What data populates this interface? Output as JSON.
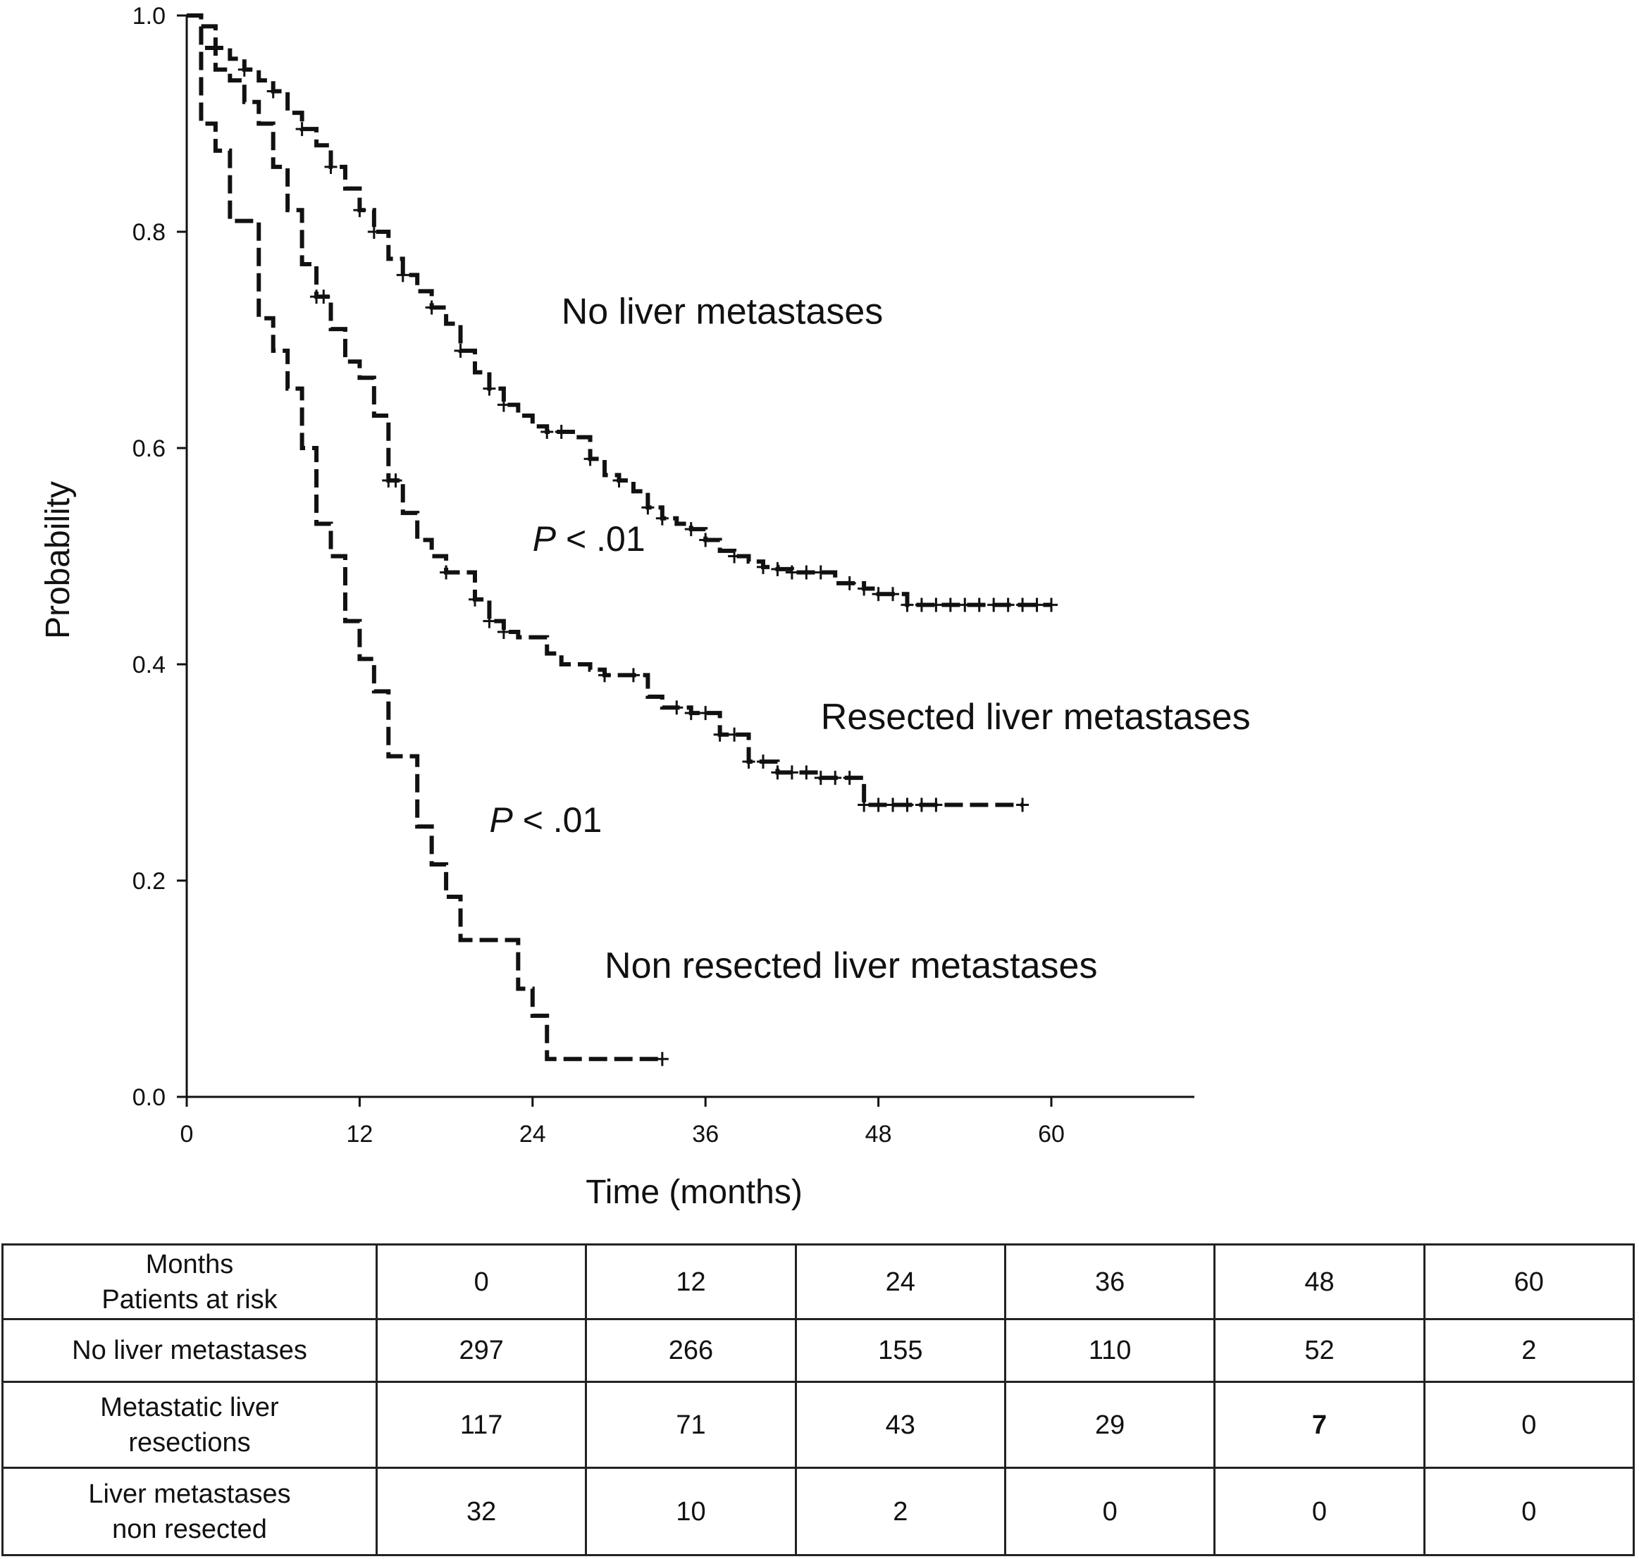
{
  "chart_data": {
    "type": "line",
    "subtype": "kaplan-meier",
    "xlabel": "Time (months)",
    "ylabel": "Probability",
    "xlim": [
      0,
      70
    ],
    "ylim": [
      0,
      1.0
    ],
    "xticks": [
      0,
      12,
      24,
      36,
      48,
      60
    ],
    "yticks": [
      0.0,
      0.2,
      0.4,
      0.6,
      0.8,
      1.0
    ],
    "ytick_labels": [
      "0.0",
      "0.2",
      "0.4",
      "0.6",
      "0.8",
      "1.0"
    ],
    "grid": false,
    "line_style": "dashed step with censor marks",
    "series": [
      {
        "name": "No liver metastases",
        "label_at": [
          26,
          0.715
        ],
        "steps": [
          [
            0,
            1.0
          ],
          [
            1,
            0.99
          ],
          [
            2,
            0.97
          ],
          [
            3,
            0.96
          ],
          [
            4,
            0.95
          ],
          [
            5,
            0.94
          ],
          [
            6,
            0.93
          ],
          [
            7,
            0.91
          ],
          [
            8,
            0.895
          ],
          [
            9,
            0.88
          ],
          [
            10,
            0.86
          ],
          [
            11,
            0.84
          ],
          [
            12,
            0.82
          ],
          [
            13,
            0.8
          ],
          [
            14,
            0.775
          ],
          [
            15,
            0.76
          ],
          [
            16,
            0.745
          ],
          [
            17,
            0.73
          ],
          [
            18,
            0.715
          ],
          [
            19,
            0.69
          ],
          [
            20,
            0.67
          ],
          [
            21,
            0.655
          ],
          [
            22,
            0.64
          ],
          [
            23,
            0.63
          ],
          [
            24,
            0.62
          ],
          [
            25,
            0.615
          ],
          [
            26,
            0.615
          ],
          [
            27,
            0.61
          ],
          [
            28,
            0.59
          ],
          [
            29,
            0.575
          ],
          [
            30,
            0.57
          ],
          [
            31,
            0.56
          ],
          [
            32,
            0.545
          ],
          [
            33,
            0.535
          ],
          [
            34,
            0.53
          ],
          [
            35,
            0.525
          ],
          [
            36,
            0.515
          ],
          [
            37,
            0.505
          ],
          [
            38,
            0.5
          ],
          [
            39,
            0.495
          ],
          [
            40,
            0.49
          ],
          [
            41,
            0.488
          ],
          [
            42,
            0.485
          ],
          [
            44,
            0.485
          ],
          [
            45,
            0.475
          ],
          [
            47,
            0.47
          ],
          [
            48,
            0.465
          ],
          [
            50,
            0.455
          ],
          [
            60,
            0.455
          ]
        ],
        "censor_times": [
          2,
          4,
          6,
          8,
          10,
          12,
          13,
          15,
          17,
          19,
          21,
          22,
          25,
          26,
          28,
          30,
          32,
          33,
          35,
          36,
          38,
          40,
          41,
          42,
          43,
          44,
          46,
          47,
          48,
          49,
          50,
          51,
          52,
          53,
          54,
          55,
          56,
          57,
          58,
          59,
          60
        ]
      },
      {
        "name": "Resected liver metastases",
        "label_at": [
          44,
          0.34
        ],
        "steps": [
          [
            0,
            1.0
          ],
          [
            1,
            0.97
          ],
          [
            2,
            0.95
          ],
          [
            3,
            0.94
          ],
          [
            4,
            0.92
          ],
          [
            5,
            0.9
          ],
          [
            6,
            0.86
          ],
          [
            7,
            0.82
          ],
          [
            8,
            0.77
          ],
          [
            9,
            0.74
          ],
          [
            10,
            0.71
          ],
          [
            11,
            0.68
          ],
          [
            12,
            0.665
          ],
          [
            13,
            0.63
          ],
          [
            14,
            0.57
          ],
          [
            15,
            0.54
          ],
          [
            16,
            0.515
          ],
          [
            17,
            0.5
          ],
          [
            18,
            0.485
          ],
          [
            20,
            0.46
          ],
          [
            21,
            0.44
          ],
          [
            22,
            0.43
          ],
          [
            23,
            0.425
          ],
          [
            25,
            0.41
          ],
          [
            26,
            0.4
          ],
          [
            28,
            0.395
          ],
          [
            29,
            0.39
          ],
          [
            32,
            0.37
          ],
          [
            33,
            0.36
          ],
          [
            35,
            0.355
          ],
          [
            37,
            0.335
          ],
          [
            39,
            0.31
          ],
          [
            41,
            0.3
          ],
          [
            44,
            0.295
          ],
          [
            47,
            0.27
          ],
          [
            58,
            0.27
          ]
        ],
        "censor_times": [
          9,
          9.5,
          14,
          14.5,
          18,
          20,
          21,
          22,
          29,
          31,
          34,
          35,
          36,
          37,
          38,
          39,
          40,
          41,
          42,
          43,
          44,
          45,
          46,
          47,
          48,
          49,
          50,
          51,
          52,
          58
        ]
      },
      {
        "name": "Non resected liver metastases",
        "label_at": [
          29,
          0.11
        ],
        "steps": [
          [
            0,
            1.0
          ],
          [
            1,
            0.9
          ],
          [
            2,
            0.875
          ],
          [
            3,
            0.81
          ],
          [
            5,
            0.72
          ],
          [
            6,
            0.69
          ],
          [
            7,
            0.655
          ],
          [
            8,
            0.6
          ],
          [
            9,
            0.53
          ],
          [
            10,
            0.5
          ],
          [
            11,
            0.44
          ],
          [
            12,
            0.405
          ],
          [
            13,
            0.375
          ],
          [
            14,
            0.315
          ],
          [
            16,
            0.25
          ],
          [
            17,
            0.215
          ],
          [
            18,
            0.185
          ],
          [
            19,
            0.145
          ],
          [
            23,
            0.1
          ],
          [
            24,
            0.075
          ],
          [
            25,
            0.035
          ],
          [
            33,
            0.035
          ]
        ],
        "censor_times": [
          33
        ]
      }
    ],
    "annotations": [
      {
        "text_p": "P",
        "text_rest": " < .01",
        "at": [
          24,
          0.505
        ]
      },
      {
        "text_p": "P",
        "text_rest": " < .01",
        "at": [
          21,
          0.245
        ]
      }
    ]
  },
  "risk_table": {
    "header": {
      "line1": "Months",
      "line2": "Patients at risk"
    },
    "months": [
      "0",
      "12",
      "24",
      "36",
      "48",
      "60"
    ],
    "rows": [
      {
        "label_line1": "No liver metastases",
        "label_line2": "",
        "values": [
          "297",
          "266",
          "155",
          "110",
          "52",
          "2"
        ]
      },
      {
        "label_line1": "Metastatic liver",
        "label_line2": "resections",
        "values": [
          "117",
          "71",
          "43",
          "29",
          "7",
          "0"
        ]
      },
      {
        "label_line1": "Liver metastases",
        "label_line2": "non resected",
        "values": [
          "32",
          "10",
          "2",
          "0",
          "0",
          "0"
        ]
      }
    ]
  }
}
